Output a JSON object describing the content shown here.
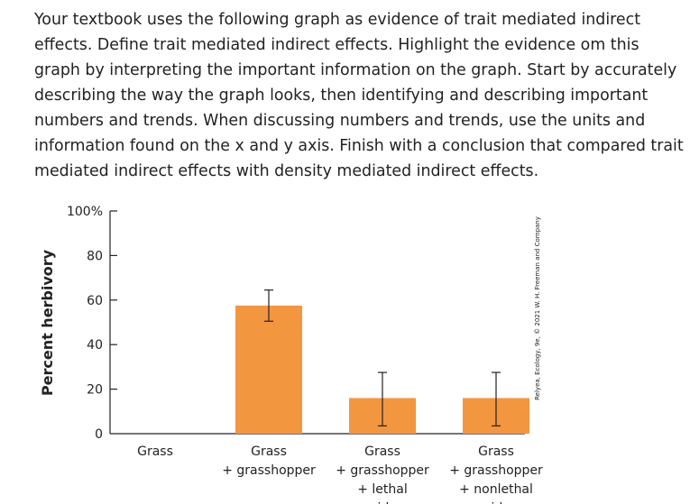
{
  "question": "Your textbook uses the following graph as evidence of trait mediated indirect effects.  Define trait mediated indirect effects.  Highlight the evidence om this graph by interpreting the important information on the graph.  Start by accurately describing the way the graph looks, then identifying and describing important numbers and trends. When discussing numbers and trends, use the units and information found on the x and y axis. Finish with a conclusion that compared trait mediated indirect effects with density mediated indirect effects.",
  "credit": "Relyea, Ecology, 9e, © 2021 W. H. Freeman and Company",
  "colors": {
    "bar": "#f39640",
    "axis": "#222222"
  },
  "chart_data": {
    "type": "bar",
    "title": "",
    "ylabel": "Percent herbivory",
    "xlabel": "",
    "ylim": [
      0,
      100
    ],
    "yticks": [
      0,
      20,
      40,
      60,
      80,
      100
    ],
    "ytick_labels": [
      "0",
      "20",
      "40",
      "60",
      "80",
      "100%"
    ],
    "categories": [
      [
        "Grass"
      ],
      [
        "Grass",
        "+ grasshopper"
      ],
      [
        "Grass",
        "+ grasshopper",
        "+ lethal",
        "spider"
      ],
      [
        "Grass",
        "+ grasshopper",
        "+ nonlethal",
        "spider"
      ]
    ],
    "values": [
      0,
      57.5,
      16,
      16
    ],
    "error_low": [
      0,
      50.5,
      3.5,
      3.5
    ],
    "error_high": [
      0,
      64.5,
      27.5,
      27.5
    ]
  }
}
